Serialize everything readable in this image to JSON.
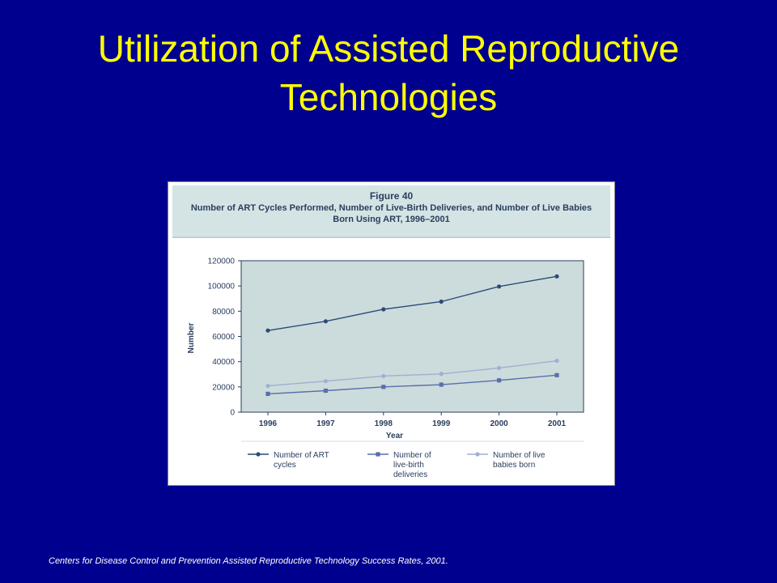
{
  "slide": {
    "title": "Utilization of Assisted Reproductive Technologies",
    "source_note": "Centers for Disease Control and Prevention Assisted Reproductive Technology Success Rates, 2001."
  },
  "colors": {
    "background": "#00008e",
    "title": "#ffff00",
    "plot_background": "#ccdcdc",
    "series_art_cycles": "#2c4a78",
    "series_live_birth": "#5a6eaa",
    "series_live_babies": "#a2aed2"
  },
  "chart_data": {
    "type": "line",
    "figure_label": "Figure 40",
    "title": "Number of ART Cycles Performed, Number of Live-Birth Deliveries, and Number of Live Babies Born Using ART, 1996–2001",
    "xlabel": "Year",
    "ylabel": "Number",
    "x": [
      "1996",
      "1997",
      "1998",
      "1999",
      "2000",
      "2001"
    ],
    "ylim": [
      0,
      120000
    ],
    "yticks": [
      "0",
      "20000",
      "40000",
      "60000",
      "80000",
      "100000",
      "120000"
    ],
    "grid": false,
    "legend_position": "bottom",
    "series": [
      {
        "name": "Number of ART cycles",
        "legend_lines": [
          "Number of ART",
          "cycles"
        ],
        "marker": "circle",
        "values": [
          64700,
          72000,
          81500,
          87600,
          99600,
          107600
        ]
      },
      {
        "name": "Number of live-birth deliveries",
        "legend_lines": [
          "Number of",
          "live-birth",
          "deliveries"
        ],
        "marker": "square",
        "values": [
          14500,
          17000,
          20000,
          21800,
          25200,
          29300
        ]
      },
      {
        "name": "Number of live babies born",
        "legend_lines": [
          "Number of live",
          "babies born"
        ],
        "marker": "circle",
        "values": [
          20800,
          24600,
          28600,
          30300,
          35000,
          40700
        ]
      }
    ]
  }
}
